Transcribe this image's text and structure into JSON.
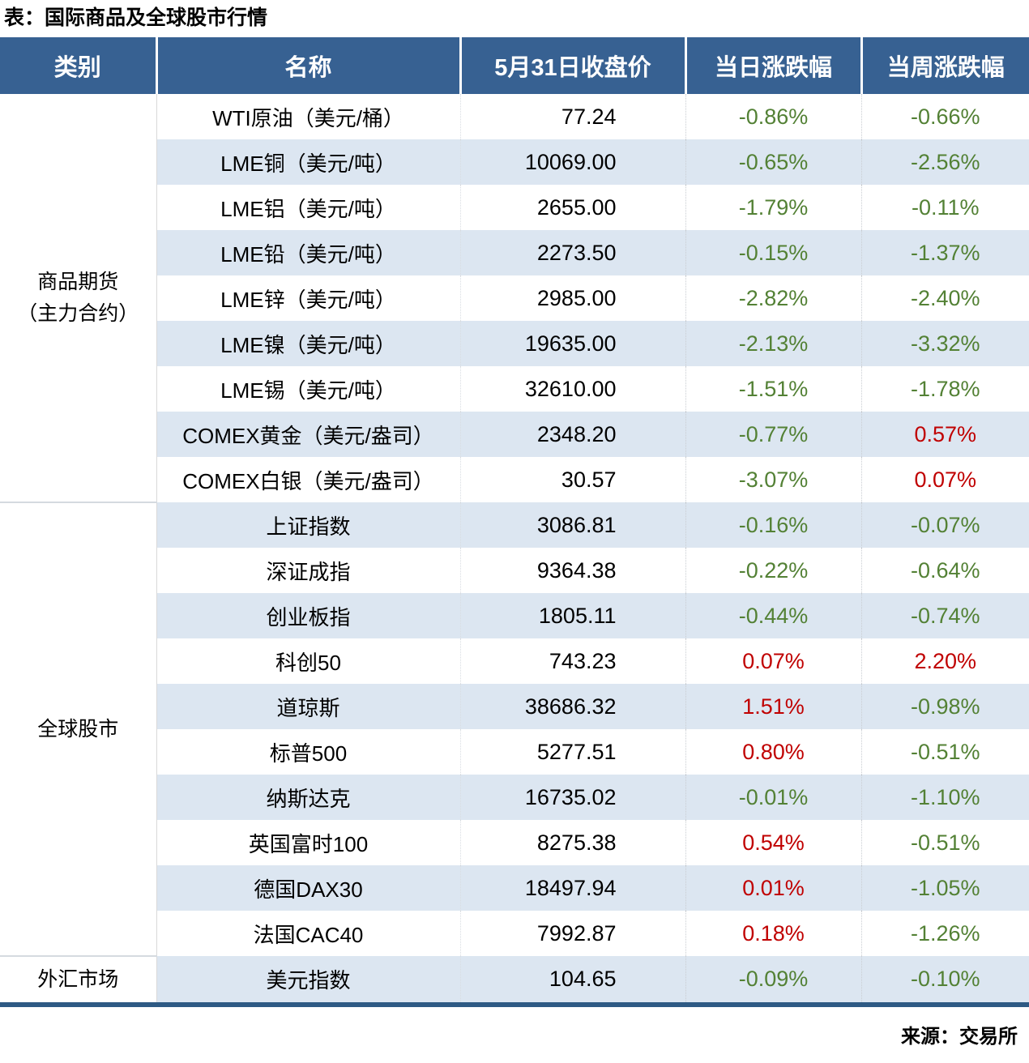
{
  "title": "表：国际商品及全球股市行情",
  "source": "来源：交易所",
  "columns": [
    "类别",
    "名称",
    "5月31日收盘价",
    "当日涨跌幅",
    "当周涨跌幅"
  ],
  "colors": {
    "header_bg": "#376192",
    "row_alt": "#DCE6F1",
    "up_red": "#C00000",
    "down_green": "#538135",
    "table_border": "#2E5A84"
  },
  "sections": [
    {
      "category_lines": [
        "商品期货",
        "（主力合约）"
      ],
      "rows": [
        {
          "name": "WTI原油（美元/桶）",
          "close": "77.24",
          "day_chg": "-0.86%",
          "day_dir": "down",
          "week_chg": "-0.66%",
          "week_dir": "down"
        },
        {
          "name": "LME铜（美元/吨）",
          "close": "10069.00",
          "day_chg": "-0.65%",
          "day_dir": "down",
          "week_chg": "-2.56%",
          "week_dir": "down"
        },
        {
          "name": "LME铝（美元/吨）",
          "close": "2655.00",
          "day_chg": "-1.79%",
          "day_dir": "down",
          "week_chg": "-0.11%",
          "week_dir": "down"
        },
        {
          "name": "LME铅（美元/吨）",
          "close": "2273.50",
          "day_chg": "-0.15%",
          "day_dir": "down",
          "week_chg": "-1.37%",
          "week_dir": "down"
        },
        {
          "name": "LME锌（美元/吨）",
          "close": "2985.00",
          "day_chg": "-2.82%",
          "day_dir": "down",
          "week_chg": "-2.40%",
          "week_dir": "down"
        },
        {
          "name": "LME镍（美元/吨）",
          "close": "19635.00",
          "day_chg": "-2.13%",
          "day_dir": "down",
          "week_chg": "-3.32%",
          "week_dir": "down"
        },
        {
          "name": "LME锡（美元/吨）",
          "close": "32610.00",
          "day_chg": "-1.51%",
          "day_dir": "down",
          "week_chg": "-1.78%",
          "week_dir": "down"
        },
        {
          "name": "COMEX黄金（美元/盎司）",
          "close": "2348.20",
          "day_chg": "-0.77%",
          "day_dir": "down",
          "week_chg": "0.57%",
          "week_dir": "up"
        },
        {
          "name": "COMEX白银（美元/盎司）",
          "close": "30.57",
          "day_chg": "-3.07%",
          "day_dir": "down",
          "week_chg": "0.07%",
          "week_dir": "up"
        }
      ]
    },
    {
      "category_lines": [
        "全球股市"
      ],
      "rows": [
        {
          "name": "上证指数",
          "close": "3086.81",
          "day_chg": "-0.16%",
          "day_dir": "down",
          "week_chg": "-0.07%",
          "week_dir": "down"
        },
        {
          "name": "深证成指",
          "close": "9364.38",
          "day_chg": "-0.22%",
          "day_dir": "down",
          "week_chg": "-0.64%",
          "week_dir": "down"
        },
        {
          "name": "创业板指",
          "close": "1805.11",
          "day_chg": "-0.44%",
          "day_dir": "down",
          "week_chg": "-0.74%",
          "week_dir": "down"
        },
        {
          "name": "科创50",
          "close": "743.23",
          "day_chg": "0.07%",
          "day_dir": "up",
          "week_chg": "2.20%",
          "week_dir": "up"
        },
        {
          "name": "道琼斯",
          "close": "38686.32",
          "day_chg": "1.51%",
          "day_dir": "up",
          "week_chg": "-0.98%",
          "week_dir": "down"
        },
        {
          "name": "标普500",
          "close": "5277.51",
          "day_chg": "0.80%",
          "day_dir": "up",
          "week_chg": "-0.51%",
          "week_dir": "down"
        },
        {
          "name": "纳斯达克",
          "close": "16735.02",
          "day_chg": "-0.01%",
          "day_dir": "down",
          "week_chg": "-1.10%",
          "week_dir": "down"
        },
        {
          "name": "英国富时100",
          "close": "8275.38",
          "day_chg": "0.54%",
          "day_dir": "up",
          "week_chg": "-0.51%",
          "week_dir": "down"
        },
        {
          "name": "德国DAX30",
          "close": "18497.94",
          "day_chg": "0.01%",
          "day_dir": "up",
          "week_chg": "-1.05%",
          "week_dir": "down"
        },
        {
          "name": "法国CAC40",
          "close": "7992.87",
          "day_chg": "0.18%",
          "day_dir": "up",
          "week_chg": "-1.26%",
          "week_dir": "down"
        }
      ]
    },
    {
      "category_lines": [
        "外汇市场"
      ],
      "rows": [
        {
          "name": "美元指数",
          "close": "104.65",
          "day_chg": "-0.09%",
          "day_dir": "down",
          "week_chg": "-0.10%",
          "week_dir": "down"
        }
      ]
    }
  ]
}
